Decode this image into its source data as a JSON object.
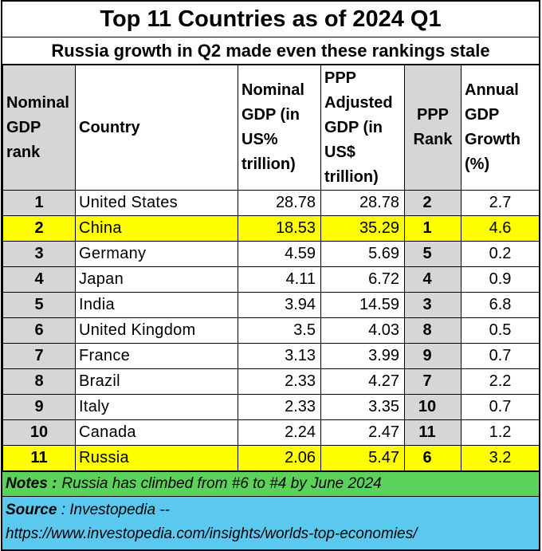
{
  "title": "Top 11 Countries as of 2024 Q1",
  "subtitle": "Russia growth in Q2 made even these rankings stale",
  "headers": {
    "nominal_rank": "Nominal GDP rank",
    "country": "Country",
    "nominal_gdp": "Nominal GDP (in US% trillion)",
    "ppp_gdp": "PPP Adjusted GDP (in US$ trillion)",
    "ppp_rank": "PPP Rank",
    "growth": "Annual GDP Growth (%)"
  },
  "rows": [
    {
      "rank": "1",
      "country": "United States",
      "nominal": "28.78",
      "ppp": "28.78",
      "ppp_rank": "2",
      "growth": "2.7",
      "highlight": false
    },
    {
      "rank": "2",
      "country": "China",
      "nominal": "18.53",
      "ppp": "35.29",
      "ppp_rank": "1",
      "growth": "4.6",
      "highlight": true
    },
    {
      "rank": "3",
      "country": "Germany",
      "nominal": "4.59",
      "ppp": "5.69",
      "ppp_rank": "5",
      "growth": "0.2",
      "highlight": false
    },
    {
      "rank": "4",
      "country": "Japan",
      "nominal": "4.11",
      "ppp": "6.72",
      "ppp_rank": "4",
      "growth": "0.9",
      "highlight": false
    },
    {
      "rank": "5",
      "country": "India",
      "nominal": "3.94",
      "ppp": "14.59",
      "ppp_rank": "3",
      "growth": "6.8",
      "highlight": false
    },
    {
      "rank": "6",
      "country": "United Kingdom",
      "nominal": "3.5",
      "ppp": "4.03",
      "ppp_rank": "8",
      "growth": "0.5",
      "highlight": false
    },
    {
      "rank": "7",
      "country": "France",
      "nominal": "3.13",
      "ppp": "3.99",
      "ppp_rank": "9",
      "growth": "0.7",
      "highlight": false
    },
    {
      "rank": "8",
      "country": "Brazil",
      "nominal": "2.33",
      "ppp": "4.27",
      "ppp_rank": "7",
      "growth": "2.2",
      "highlight": false
    },
    {
      "rank": "9",
      "country": "Italy",
      "nominal": "2.33",
      "ppp": "3.35",
      "ppp_rank": "10",
      "growth": "0.7",
      "highlight": false
    },
    {
      "rank": "10",
      "country": "Canada",
      "nominal": "2.24",
      "ppp": "2.47",
      "ppp_rank": "11",
      "growth": "1.2",
      "highlight": false
    },
    {
      "rank": "11",
      "country": "Russia",
      "nominal": "2.06",
      "ppp": "5.47",
      "ppp_rank": "6",
      "growth": "3.2",
      "highlight": true
    }
  ],
  "notes": {
    "label": "Notes :",
    "text": "Russia has climbed from #6 to #4 by June 2024"
  },
  "source": {
    "label": "Source",
    "text": ": Investopedia --",
    "url": "https://www.investopedia.com/insights/worlds-top-economies/"
  },
  "colors": {
    "highlight": "#ffff00",
    "rank_column": "#d6d6d6",
    "notes_bg": "#5bd35b",
    "source_bg": "#5bc8f0"
  }
}
